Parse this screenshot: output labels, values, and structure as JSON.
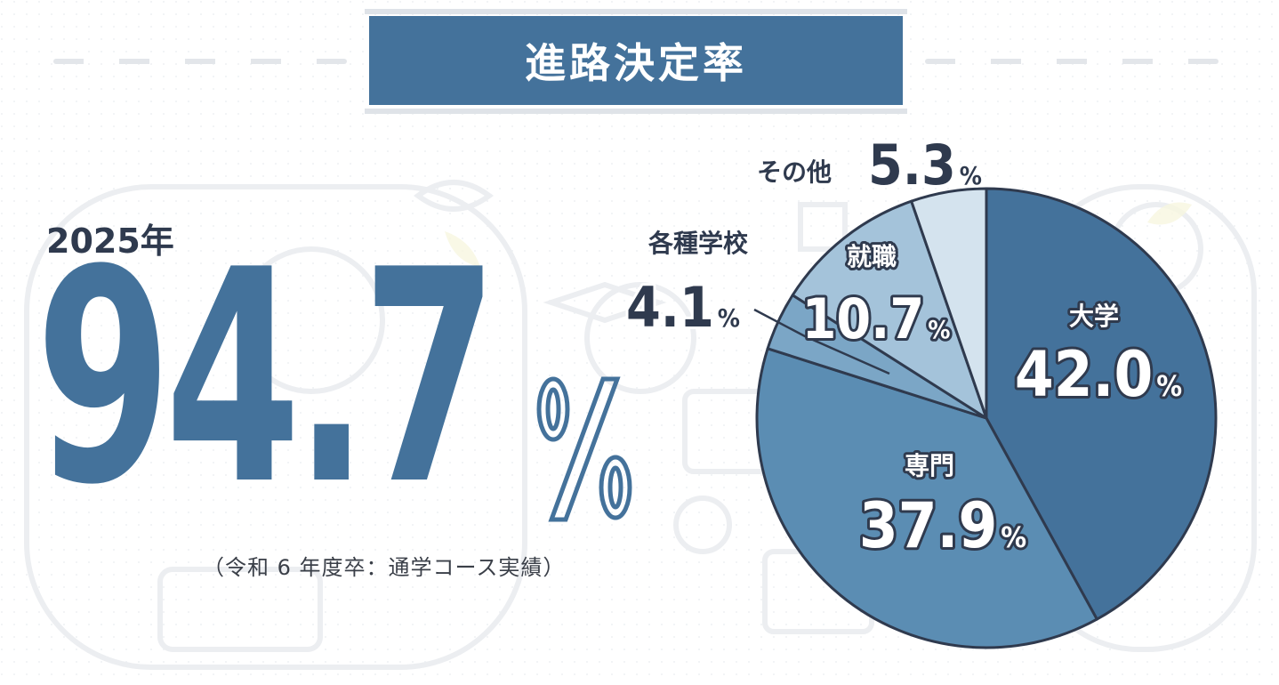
{
  "header": {
    "title": "進路決定率"
  },
  "summary": {
    "year": "2025年",
    "rate_value": "94.7",
    "rate_unit": "%",
    "note": "（令和 6 年度卒：通学コース実績）"
  },
  "colors": {
    "primary": "#44729b",
    "title_bg": "#44729b",
    "text_dark": "#2f3a4e",
    "slice_univ": "#44729b",
    "slice_senmon": "#5b8db3",
    "slice_kakushu": "#7ba6c6",
    "slice_shushoku": "#a4c3da",
    "slice_other": "#d4e3ee",
    "outline": "#2f3a4e"
  },
  "chart_data": {
    "type": "pie",
    "title": "",
    "slices": [
      {
        "label": "大学",
        "value": 42.0,
        "unit": "%"
      },
      {
        "label": "専門",
        "value": 37.9,
        "unit": "%"
      },
      {
        "label": "各種学校",
        "value": 4.1,
        "unit": "%"
      },
      {
        "label": "就職",
        "value": 10.7,
        "unit": "%"
      },
      {
        "label": "その他",
        "value": 5.3,
        "unit": "%"
      }
    ],
    "start": "12 o'clock",
    "direction": "clockwise"
  }
}
